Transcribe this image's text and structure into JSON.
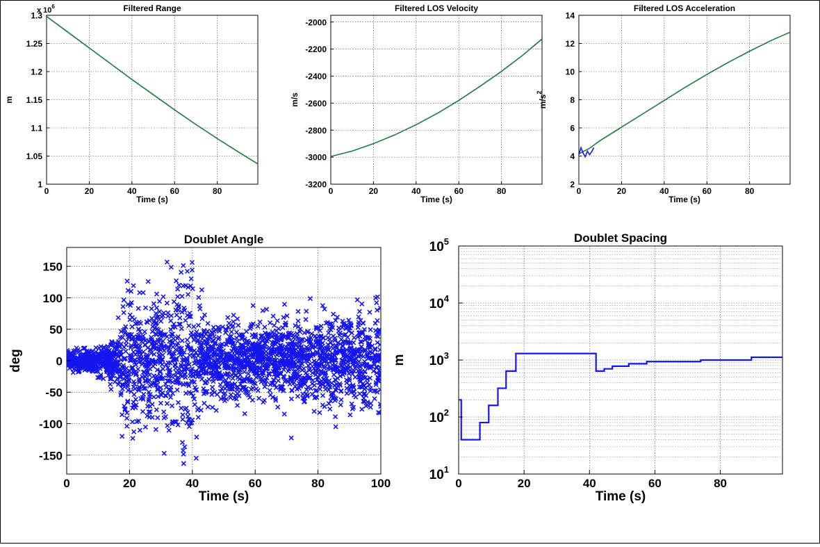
{
  "chart_data": [
    {
      "id": "range",
      "type": "line",
      "title": "Filtered Range",
      "xlabel": "Time (s)",
      "ylabel": "m",
      "exponent_label": "x 10",
      "exponent_power": "6",
      "xlim": [
        0,
        99
      ],
      "ylim": [
        1.0,
        1.3
      ],
      "xticks": [
        0,
        20,
        40,
        60,
        80
      ],
      "yticks": [
        1,
        1.05,
        1.1,
        1.15,
        1.2,
        1.25,
        1.3
      ],
      "ytick_labels": [
        "1",
        "1.05",
        "1.1",
        "1.15",
        "1.2",
        "1.25",
        "1.3"
      ],
      "grid": true,
      "series": [
        {
          "color": "#1a7a3a",
          "x": [
            0,
            10,
            20,
            30,
            40,
            50,
            60,
            70,
            80,
            90,
            99
          ],
          "y": [
            1.298,
            1.27,
            1.242,
            1.214,
            1.186,
            1.159,
            1.132,
            1.106,
            1.081,
            1.057,
            1.036
          ]
        }
      ]
    },
    {
      "id": "velocity",
      "type": "line",
      "title": "Filtered LOS Velocity",
      "xlabel": "Time (s)",
      "ylabel": "m/s",
      "xlim": [
        0,
        99
      ],
      "ylim": [
        -3200,
        -1950
      ],
      "xticks": [
        0,
        20,
        40,
        60,
        80
      ],
      "yticks": [
        -3200,
        -3000,
        -2800,
        -2600,
        -2400,
        -2200,
        -2000
      ],
      "ytick_labels": [
        "-3200",
        "-3000",
        "-2800",
        "-2600",
        "-2400",
        "-2200",
        "-2000"
      ],
      "grid": true,
      "series": [
        {
          "color": "#1a7a3a",
          "x": [
            0,
            10,
            20,
            30,
            40,
            50,
            60,
            70,
            80,
            90,
            99
          ],
          "y": [
            -2995,
            -2955,
            -2900,
            -2835,
            -2760,
            -2675,
            -2580,
            -2475,
            -2365,
            -2245,
            -2125
          ]
        }
      ]
    },
    {
      "id": "acceleration",
      "type": "line",
      "title": "Filtered LOS Acceleration",
      "xlabel": "Time (s)",
      "ylabel": "m/s",
      "ylabel_power": "2",
      "xlim": [
        0,
        99
      ],
      "ylim": [
        2,
        14
      ],
      "xticks": [
        0,
        20,
        40,
        60,
        80
      ],
      "yticks": [
        2,
        4,
        6,
        8,
        10,
        12,
        14
      ],
      "ytick_labels": [
        "2",
        "4",
        "6",
        "8",
        "10",
        "12",
        "14"
      ],
      "grid": true,
      "series": [
        {
          "color": "#1a7a3a",
          "x": [
            0,
            5,
            10,
            20,
            30,
            40,
            50,
            60,
            70,
            80,
            90,
            99
          ],
          "y": [
            4.15,
            4.55,
            5.1,
            6.05,
            7.0,
            7.95,
            8.9,
            9.8,
            10.65,
            11.45,
            12.2,
            12.8
          ]
        },
        {
          "color": "#1515ee",
          "x": [
            0,
            1,
            2,
            3,
            4,
            5,
            6,
            7
          ],
          "y": [
            4.1,
            4.6,
            4.2,
            3.95,
            4.35,
            4.1,
            4.3,
            4.6
          ]
        }
      ]
    },
    {
      "id": "angle",
      "type": "scatter",
      "title": "Doublet Angle",
      "xlabel": "Time (s)",
      "ylabel": "deg",
      "xlim": [
        0,
        100
      ],
      "ylim": [
        -180,
        180
      ],
      "xticks": [
        0,
        20,
        40,
        60,
        80,
        100
      ],
      "yticks": [
        -150,
        -100,
        -50,
        0,
        50,
        100,
        150
      ],
      "ytick_labels": [
        "-150",
        "-100",
        "-50",
        "0",
        "50",
        "100",
        "150"
      ],
      "grid": true,
      "marker": "x",
      "color": "#1515ee",
      "spread_profile": [
        {
          "t": 0,
          "s": 12
        },
        {
          "t": 10,
          "s": 20
        },
        {
          "t": 16,
          "s": 35
        },
        {
          "t": 18,
          "s": 95
        },
        {
          "t": 25,
          "s": 100
        },
        {
          "t": 30,
          "s": 95
        },
        {
          "t": 37,
          "s": 140
        },
        {
          "t": 42,
          "s": 120
        },
        {
          "t": 43,
          "s": 60
        },
        {
          "t": 60,
          "s": 55
        },
        {
          "t": 80,
          "s": 65
        },
        {
          "t": 100,
          "s": 80
        }
      ]
    },
    {
      "id": "spacing",
      "type": "line",
      "title": "Doublet Spacing",
      "xlabel": "Time (s)",
      "ylabel": "m",
      "yscale": "log",
      "xlim": [
        0,
        99
      ],
      "ylim": [
        10,
        100000
      ],
      "xticks": [
        0,
        20,
        40,
        60,
        80
      ],
      "ytick_base": "10",
      "ytick_powers": [
        "1",
        "2",
        "3",
        "4",
        "5"
      ],
      "grid": true,
      "series": [
        {
          "color": "#1515ee",
          "step": true,
          "x": [
            0,
            0.8,
            6.5,
            9.2,
            12,
            14.5,
            17.5,
            42,
            44.5,
            47,
            52,
            57.5,
            74,
            89.5,
            99
          ],
          "y": [
            200,
            40,
            80,
            160,
            320,
            640,
            1300,
            640,
            700,
            780,
            860,
            940,
            1000,
            1120,
            1120
          ]
        }
      ]
    }
  ]
}
